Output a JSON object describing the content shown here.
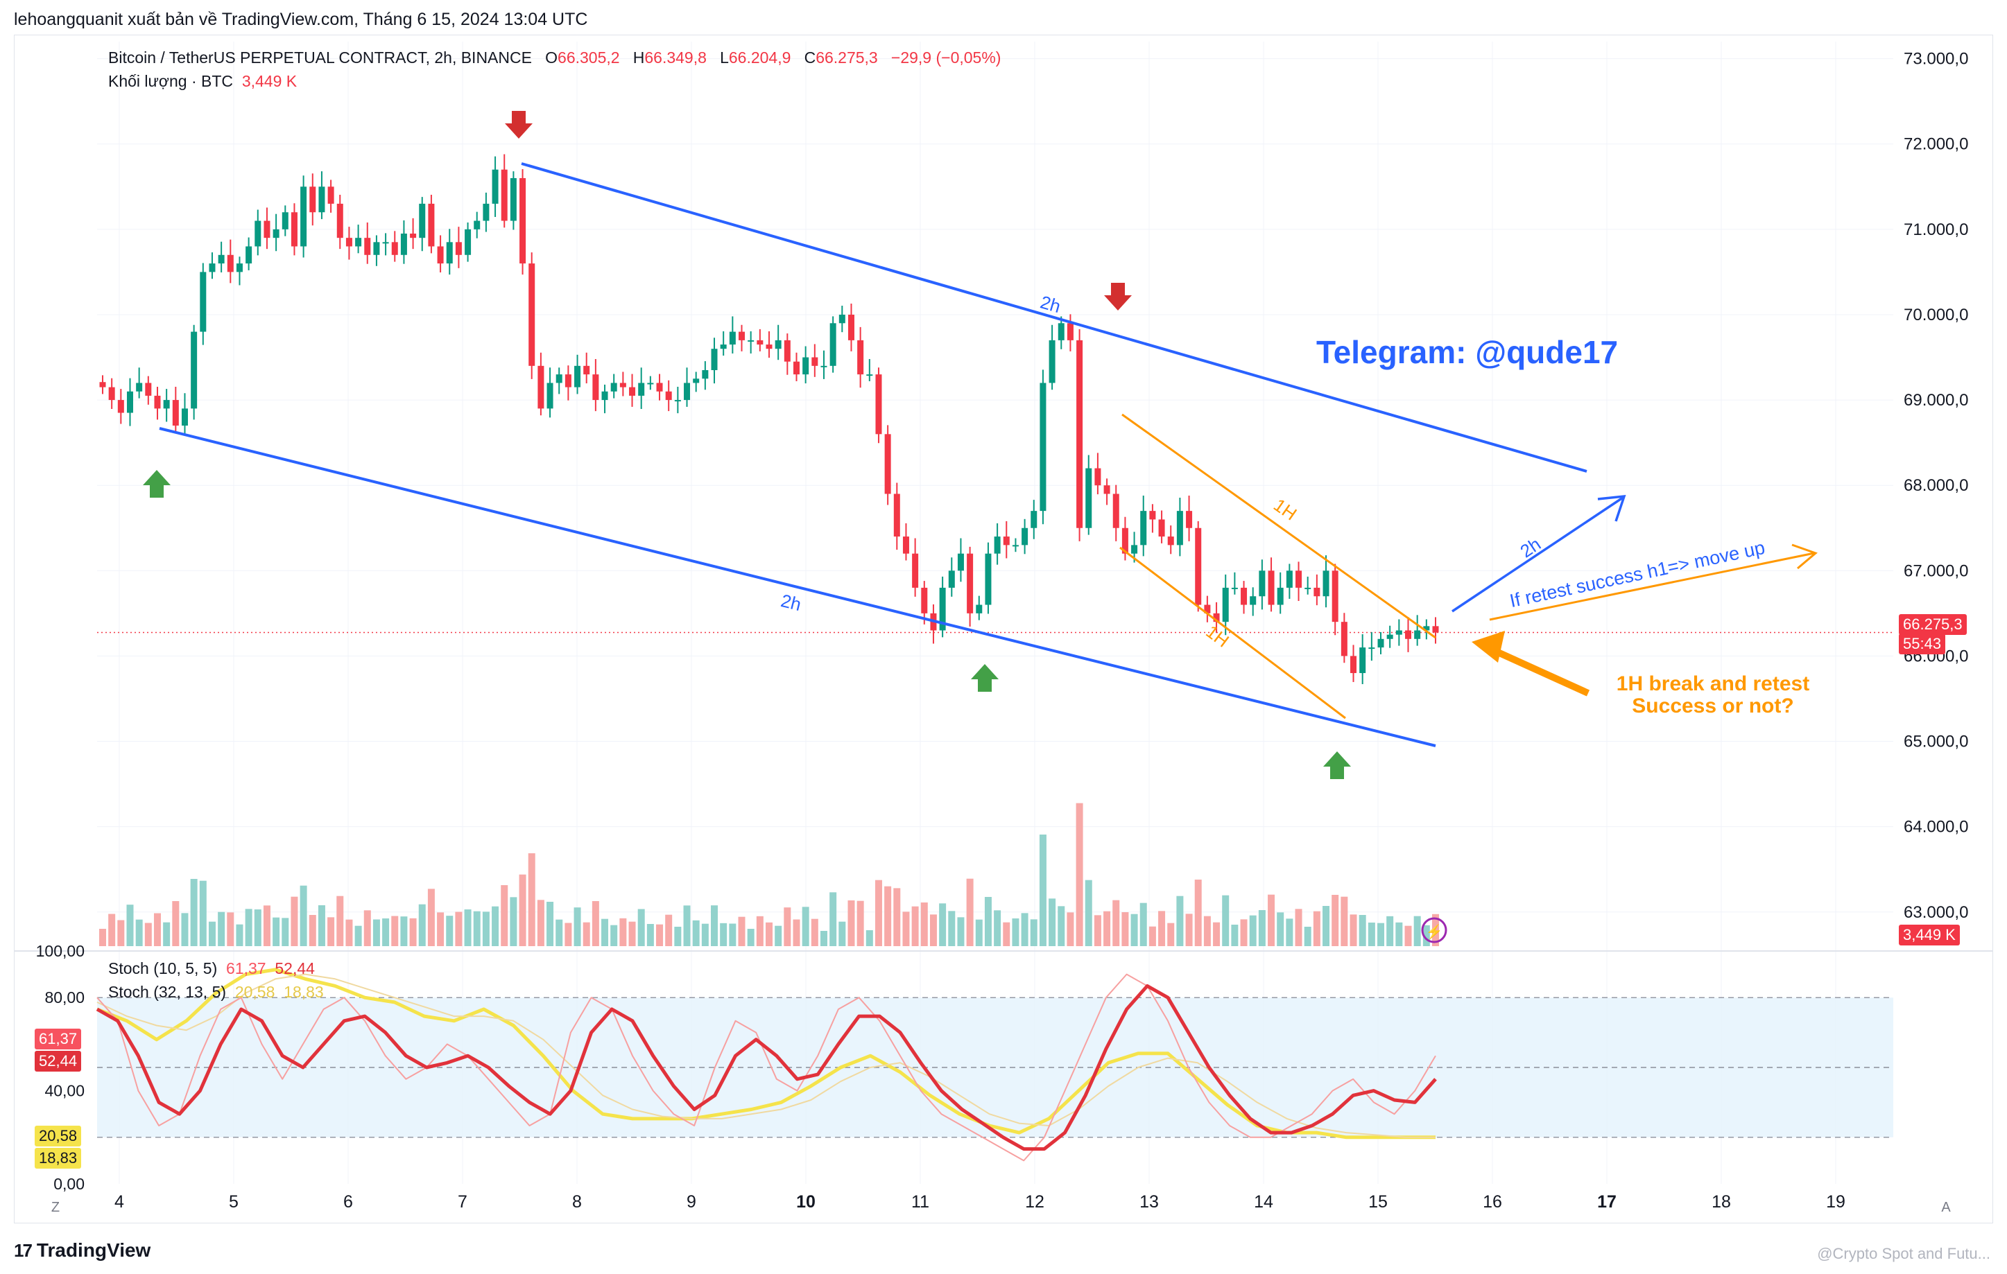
{
  "header": {
    "publisher_line": "lehoangquanit xuất bản về TradingView.com, Tháng 6 15, 2024 13:04 UTC"
  },
  "legend": {
    "symbol": "Bitcoin / TetherUS PERPETUAL CONTRACT, 2h, BINANCE",
    "o_label": "O",
    "o_value": "66.305,2",
    "h_label": "H",
    "h_value": "66.349,8",
    "l_label": "L",
    "l_value": "66.204,9",
    "c_label": "C",
    "c_value": "66.275,3",
    "change": "−29,9 (−0,05%)",
    "volume_label": "Khối lượng · BTC",
    "volume_value": "3,449 K"
  },
  "stoch_legend": {
    "stoch1_label": "Stoch (10, 5, 5)",
    "stoch1_k": "61,37",
    "stoch1_d": "52,44",
    "stoch2_label": "Stoch (32, 13, 5)",
    "stoch2_k": "20,58",
    "stoch2_d": "18,83"
  },
  "badges": {
    "price": "66.275,3",
    "countdown": "55:43",
    "volume": "3,449 K",
    "stoch_61": "61,37",
    "stoch_52": "52,44",
    "stoch_20": "20,58",
    "stoch_18": "18,83"
  },
  "annotations": {
    "telegram": "Telegram: @qude17",
    "label_2h_top": "2h",
    "label_2h_bottom": "2h",
    "label_2h_arrow": "2h",
    "label_1h_top": "1H",
    "label_1h_bottom": "1H",
    "retest_text": "If retest success h1=> move up",
    "break_line1": "1H break and retest",
    "break_line2": "Success or not?"
  },
  "footer": {
    "brand": "TradingView",
    "watermark": "@Crypto Spot and Futu..."
  },
  "chart_data": {
    "type": "candlestick",
    "timeframe": "2h",
    "price_axis": {
      "min": 62600,
      "max": 73200,
      "ticks": [
        63000,
        64000,
        65000,
        66000,
        67000,
        68000,
        69000,
        70000,
        71000,
        72000,
        73000
      ],
      "tick_labels": [
        "63.000,0",
        "64.000,0",
        "65.000,0",
        "66.000,0",
        "67.000,0",
        "68.000,0",
        "69.000,0",
        "70.000,0",
        "71.000,0",
        "72.000,0",
        "73.000,0"
      ]
    },
    "time_axis": {
      "labels": [
        "4",
        "5",
        "6",
        "7",
        "8",
        "9",
        "10",
        "11",
        "12",
        "13",
        "14",
        "15",
        "16",
        "17",
        "18",
        "19"
      ],
      "bold": [
        "10",
        "17"
      ]
    },
    "last_price": 66275.3,
    "colors": {
      "up": "#089981",
      "down": "#f23645",
      "up_vol": "#92d2cc",
      "down_vol": "#f7a9a7",
      "trend": "#2962ff",
      "channel_1h": "#ff9800",
      "stoch_k": "#e1323b",
      "stoch_d": "#f5e34b"
    },
    "candles_close": [
      69150,
      69000,
      68850,
      69100,
      69200,
      69050,
      68900,
      69000,
      68700,
      68900,
      69800,
      70500,
      70600,
      70700,
      70500,
      70600,
      70800,
      71100,
      70900,
      71000,
      71200,
      70800,
      71500,
      71200,
      71500,
      71300,
      70900,
      70800,
      70900,
      70700,
      70850,
      70850,
      70700,
      70950,
      70900,
      71300,
      70800,
      70600,
      70850,
      70700,
      71000,
      71100,
      71300,
      71700,
      71100,
      71600,
      70600,
      69400,
      68900,
      69200,
      69300,
      69150,
      69400,
      69300,
      69000,
      69100,
      69200,
      69150,
      69050,
      69200,
      69200,
      69100,
      69000,
      69000,
      69200,
      69250,
      69350,
      69600,
      69650,
      69800,
      69700,
      69700,
      69650,
      69600,
      69700,
      69450,
      69300,
      69500,
      69400,
      69400,
      69900,
      70000,
      69700,
      69300,
      69300,
      68600,
      67900,
      67400,
      67200,
      66800,
      66500,
      66300,
      66800,
      67000,
      67200,
      66500,
      66600,
      67200,
      67400,
      67300,
      67300,
      67500,
      67700,
      69200,
      69700,
      69900,
      69700,
      67500,
      68200,
      68000,
      67900,
      67500,
      67200,
      67300,
      67700,
      67600,
      67400,
      67300,
      67700,
      67500,
      66600,
      66500,
      66400,
      66800,
      66800,
      66600,
      66700,
      67000,
      66600,
      66800,
      67000,
      66800,
      66800,
      66700,
      67000,
      66400,
      66000,
      65800,
      66100,
      66100,
      66200,
      66250,
      66300,
      66200,
      66300,
      66350,
      66275
    ],
    "candles_meta": "simplified series reconstructed visually",
    "stoch_axis": {
      "ticks": [
        0,
        20,
        40,
        60,
        80,
        100
      ],
      "tick_labels": [
        "0,00",
        "",
        "40,00",
        "",
        "80,00",
        "100,00"
      ],
      "bands": [
        20,
        50,
        80
      ]
    },
    "stoch_k1": [
      80,
      70,
      40,
      25,
      30,
      55,
      75,
      80,
      60,
      45,
      60,
      75,
      80,
      70,
      55,
      45,
      50,
      60,
      55,
      45,
      35,
      25,
      30,
      65,
      80,
      75,
      55,
      40,
      30,
      25,
      50,
      70,
      65,
      45,
      40,
      55,
      75,
      80,
      70,
      55,
      40,
      30,
      25,
      20,
      15,
      10,
      20,
      40,
      60,
      80,
      90,
      85,
      70,
      50,
      35,
      25,
      20,
      20,
      25,
      30,
      40,
      45,
      35,
      30,
      40,
      55
    ],
    "stoch_d1": [
      75,
      70,
      55,
      35,
      30,
      40,
      60,
      75,
      70,
      55,
      50,
      60,
      70,
      72,
      65,
      55,
      50,
      52,
      55,
      50,
      42,
      35,
      30,
      40,
      65,
      75,
      70,
      55,
      42,
      32,
      38,
      55,
      62,
      55,
      45,
      47,
      60,
      72,
      72,
      65,
      52,
      40,
      32,
      26,
      20,
      15,
      15,
      22,
      38,
      58,
      75,
      85,
      80,
      65,
      50,
      38,
      28,
      22,
      22,
      25,
      30,
      38,
      40,
      36,
      35,
      45
    ],
    "stoch_k2": [
      75,
      70,
      62,
      70,
      82,
      90,
      92,
      88,
      85,
      80,
      78,
      72,
      70,
      75,
      68,
      55,
      40,
      30,
      28,
      28,
      28,
      30,
      32,
      35,
      42,
      50,
      55,
      48,
      38,
      30,
      25,
      22,
      28,
      40,
      52,
      56,
      56,
      45,
      34,
      25,
      22,
      22,
      20,
      20,
      20,
      20
    ],
    "stoch_d2": [
      78,
      72,
      68,
      66,
      72,
      82,
      88,
      90,
      88,
      84,
      80,
      76,
      72,
      72,
      70,
      62,
      50,
      38,
      32,
      29,
      28,
      28,
      30,
      32,
      36,
      44,
      50,
      52,
      46,
      38,
      30,
      26,
      25,
      32,
      42,
      50,
      54,
      52,
      44,
      35,
      28,
      24,
      22,
      21,
      20,
      20
    ]
  }
}
